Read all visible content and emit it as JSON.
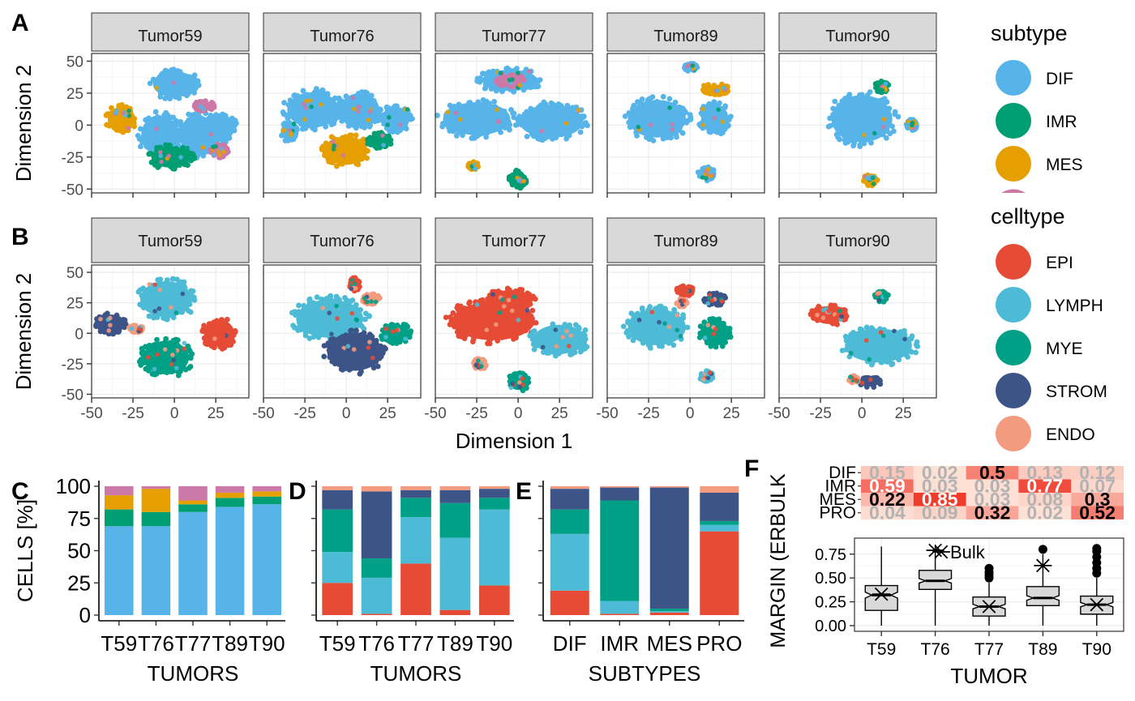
{
  "colors": {
    "subtype": {
      "DIF": "#56B4E9",
      "IMR": "#009E73",
      "MES": "#E69F00",
      "PRO": "#CC79A7"
    },
    "celltype": {
      "EPI": "#E64B35",
      "LYMPH": "#4DBBD5",
      "MYE": "#00A087",
      "STROM": "#3C5488",
      "ENDO": "#F39B7F"
    },
    "strip_fill": "#D9D9D9"
  },
  "panel_letters": [
    "A",
    "B",
    "C",
    "D",
    "E",
    "F"
  ],
  "facets": [
    "Tumor59",
    "Tumor76",
    "Tumor77",
    "Tumor89",
    "Tumor90"
  ],
  "legends": {
    "subtype": {
      "title": "subtype",
      "items": [
        "DIF",
        "IMR",
        "MES"
      ]
    },
    "celltype": {
      "title": "celltype",
      "items": [
        "EPI",
        "LYMPH",
        "MYE",
        "STROM",
        "ENDO"
      ]
    }
  },
  "chart_data": [
    {
      "id": "A",
      "type": "scatter",
      "color_by": "subtype",
      "facets": [
        "Tumor59",
        "Tumor76",
        "Tumor77",
        "Tumor89",
        "Tumor90"
      ],
      "ylabel": "Dimension 2",
      "xlim": [
        -50,
        45
      ],
      "ylim": [
        -53,
        56
      ],
      "yticks": [
        -50,
        -25,
        0,
        25,
        50
      ],
      "clusters": [
        [
          {
            "x": 0,
            "y": 32,
            "rx": 14,
            "ry": 11,
            "type": "DIF"
          },
          {
            "x": -9,
            "y": -8,
            "rx": 12,
            "ry": 17,
            "type": "DIF"
          },
          {
            "x": 14,
            "y": -8,
            "rx": 12,
            "ry": 17,
            "type": "DIF"
          },
          {
            "x": 27,
            "y": -2,
            "rx": 10,
            "ry": 12,
            "type": "DIF"
          },
          {
            "x": -32,
            "y": 5,
            "rx": 9,
            "ry": 10,
            "type": "MES"
          },
          {
            "x": -2,
            "y": -25,
            "rx": 13,
            "ry": 9,
            "type": "IMR"
          },
          {
            "x": 18,
            "y": 15,
            "rx": 6,
            "ry": 4,
            "type": "PRO"
          },
          {
            "x": 27,
            "y": -20,
            "rx": 5,
            "ry": 5,
            "type": "PRO"
          }
        ],
        [
          {
            "x": -20,
            "y": 12,
            "rx": 17,
            "ry": 15,
            "type": "DIF"
          },
          {
            "x": 8,
            "y": 12,
            "rx": 13,
            "ry": 14,
            "type": "DIF"
          },
          {
            "x": 30,
            "y": 5,
            "rx": 9,
            "ry": 10,
            "type": "DIF"
          },
          {
            "x": -35,
            "y": -5,
            "rx": 5,
            "ry": 7,
            "type": "DIF"
          },
          {
            "x": 0,
            "y": -20,
            "rx": 14,
            "ry": 12,
            "type": "MES"
          },
          {
            "x": 20,
            "y": -12,
            "rx": 7,
            "ry": 6,
            "type": "IMR"
          }
        ],
        [
          {
            "x": -25,
            "y": 5,
            "rx": 22,
            "ry": 14,
            "type": "DIF"
          },
          {
            "x": 20,
            "y": 3,
            "rx": 21,
            "ry": 14,
            "type": "DIF"
          },
          {
            "x": -5,
            "y": 35,
            "rx": 18,
            "ry": 9,
            "type": "DIF"
          },
          {
            "x": 0,
            "y": -42,
            "rx": 5,
            "ry": 7,
            "type": "IMR"
          },
          {
            "x": -5,
            "y": 35,
            "rx": 8,
            "ry": 5,
            "type": "PRO"
          },
          {
            "x": -27,
            "y": -32,
            "rx": 3,
            "ry": 3,
            "type": "MES"
          }
        ],
        [
          {
            "x": -20,
            "y": 5,
            "rx": 19,
            "ry": 16,
            "type": "DIF"
          },
          {
            "x": 15,
            "y": 5,
            "rx": 9,
            "ry": 12,
            "type": "DIF"
          },
          {
            "x": 10,
            "y": -38,
            "rx": 5,
            "ry": 5,
            "type": "DIF"
          },
          {
            "x": 15,
            "y": 28,
            "rx": 8,
            "ry": 4,
            "type": "MES"
          },
          {
            "x": 0,
            "y": 45,
            "rx": 4,
            "ry": 3,
            "type": "DIF"
          }
        ],
        [
          {
            "x": 0,
            "y": 5,
            "rx": 20,
            "ry": 20,
            "type": "DIF"
          },
          {
            "x": 12,
            "y": 30,
            "rx": 4,
            "ry": 4,
            "type": "IMR"
          },
          {
            "x": 30,
            "y": 0,
            "rx": 3,
            "ry": 4,
            "type": "DIF"
          },
          {
            "x": 5,
            "y": -43,
            "rx": 4,
            "ry": 4,
            "type": "MES"
          }
        ]
      ]
    },
    {
      "id": "B",
      "type": "scatter",
      "color_by": "celltype",
      "facets": [
        "Tumor59",
        "Tumor76",
        "Tumor77",
        "Tumor89",
        "Tumor90"
      ],
      "xlabel": "Dimension 1",
      "ylabel": "Dimension 2",
      "xlim": [
        -50,
        45
      ],
      "ylim": [
        -53,
        56
      ],
      "xticks": [
        -50,
        -25,
        0,
        25
      ],
      "yticks": [
        -50,
        -25,
        0,
        25,
        50
      ],
      "clusters": [
        [
          {
            "x": -5,
            "y": 28,
            "rx": 17,
            "ry": 16,
            "type": "LYMPH"
          },
          {
            "x": -5,
            "y": -20,
            "rx": 15,
            "ry": 15,
            "type": "MYE"
          },
          {
            "x": -38,
            "y": 8,
            "rx": 9,
            "ry": 8,
            "type": "STROM"
          },
          {
            "x": 27,
            "y": 0,
            "rx": 10,
            "ry": 12,
            "type": "EPI"
          },
          {
            "x": -23,
            "y": 4,
            "rx": 4,
            "ry": 3,
            "type": "ENDO"
          }
        ],
        [
          {
            "x": -10,
            "y": 12,
            "rx": 22,
            "ry": 17,
            "type": "LYMPH"
          },
          {
            "x": 5,
            "y": -15,
            "rx": 18,
            "ry": 17,
            "type": "STROM"
          },
          {
            "x": 30,
            "y": 0,
            "rx": 9,
            "ry": 8,
            "type": "MYE"
          },
          {
            "x": 15,
            "y": 28,
            "rx": 5,
            "ry": 4,
            "type": "ENDO"
          },
          {
            "x": 5,
            "y": 40,
            "rx": 3,
            "ry": 5,
            "type": "EPI"
          }
        ],
        [
          {
            "x": -15,
            "y": 10,
            "rx": 27,
            "ry": 17,
            "type": "EPI"
          },
          {
            "x": -5,
            "y": 28,
            "rx": 14,
            "ry": 8,
            "type": "EPI"
          },
          {
            "x": 25,
            "y": -5,
            "rx": 17,
            "ry": 13,
            "type": "LYMPH"
          },
          {
            "x": 0,
            "y": -40,
            "rx": 6,
            "ry": 7,
            "type": "MYE"
          },
          {
            "x": -23,
            "y": -25,
            "rx": 4,
            "ry": 4,
            "type": "ENDO"
          }
        ],
        [
          {
            "x": -20,
            "y": 5,
            "rx": 19,
            "ry": 16,
            "type": "LYMPH"
          },
          {
            "x": 15,
            "y": 0,
            "rx": 9,
            "ry": 11,
            "type": "MYE"
          },
          {
            "x": 15,
            "y": 28,
            "rx": 6,
            "ry": 5,
            "type": "STROM"
          },
          {
            "x": -3,
            "y": 35,
            "rx": 5,
            "ry": 4,
            "type": "EPI"
          },
          {
            "x": -5,
            "y": 25,
            "rx": 3,
            "ry": 3,
            "type": "ENDO"
          },
          {
            "x": 10,
            "y": -35,
            "rx": 4,
            "ry": 4,
            "type": "LYMPH"
          }
        ],
        [
          {
            "x": 10,
            "y": -10,
            "rx": 22,
            "ry": 15,
            "type": "LYMPH"
          },
          {
            "x": -20,
            "y": 15,
            "rx": 10,
            "ry": 8,
            "type": "EPI"
          },
          {
            "x": 12,
            "y": 30,
            "rx": 4,
            "ry": 4,
            "type": "MYE"
          },
          {
            "x": 5,
            "y": -40,
            "rx": 6,
            "ry": 4,
            "type": "STROM"
          },
          {
            "x": -5,
            "y": -38,
            "rx": 3,
            "ry": 3,
            "type": "ENDO"
          }
        ]
      ]
    },
    {
      "id": "C",
      "type": "bar",
      "stacked": true,
      "categories": [
        "T59",
        "T76",
        "T77",
        "T89",
        "T90"
      ],
      "xlabel": "TUMORS",
      "ylabel": "CELLS [%]",
      "ylim": [
        0,
        100
      ],
      "yticks": [
        0,
        25,
        50,
        75,
        100
      ],
      "series": [
        {
          "name": "DIF",
          "values": [
            69,
            69,
            80,
            84,
            86
          ]
        },
        {
          "name": "IMR",
          "values": [
            13,
            11,
            6,
            7,
            6
          ]
        },
        {
          "name": "MES",
          "values": [
            11,
            18,
            3,
            4,
            4
          ]
        },
        {
          "name": "PRO",
          "values": [
            7,
            2,
            11,
            5,
            4
          ]
        }
      ]
    },
    {
      "id": "D",
      "type": "bar",
      "stacked": true,
      "categories": [
        "T59",
        "T76",
        "T77",
        "T89",
        "T90"
      ],
      "xlabel": "TUMORS",
      "ylim": [
        0,
        100
      ],
      "series": [
        {
          "name": "EPI",
          "values": [
            25,
            1,
            40,
            4,
            23
          ]
        },
        {
          "name": "LYMPH",
          "values": [
            24,
            28,
            36,
            56,
            59
          ]
        },
        {
          "name": "MYE",
          "values": [
            33,
            15,
            15,
            27,
            9
          ]
        },
        {
          "name": "STROM",
          "values": [
            15,
            52,
            6,
            10,
            7
          ]
        },
        {
          "name": "ENDO",
          "values": [
            3,
            4,
            3,
            3,
            2
          ]
        }
      ]
    },
    {
      "id": "E",
      "type": "bar",
      "stacked": true,
      "categories": [
        "DIF",
        "IMR",
        "MES",
        "PRO"
      ],
      "xlabel": "SUBTYPES",
      "ylim": [
        0,
        100
      ],
      "series": [
        {
          "name": "EPI",
          "values": [
            19,
            1,
            2,
            65
          ]
        },
        {
          "name": "LYMPH",
          "values": [
            44,
            10,
            1,
            5
          ]
        },
        {
          "name": "MYE",
          "values": [
            19,
            78,
            2,
            3
          ]
        },
        {
          "name": "STROM",
          "values": [
            16,
            10,
            94,
            22
          ]
        },
        {
          "name": "ENDO",
          "values": [
            2,
            1,
            1,
            5
          ]
        }
      ]
    },
    {
      "id": "F-heatmap",
      "type": "heatmap",
      "ylabel": "MARGIN (ERBULK",
      "rows": [
        "DIF",
        "IMR",
        "MES",
        "PRO"
      ],
      "columns": [
        "T59",
        "T76",
        "T77",
        "T89",
        "T90"
      ],
      "values": [
        [
          0.15,
          0.02,
          0.5,
          0.13,
          0.12
        ],
        [
          0.59,
          0.03,
          0.03,
          0.77,
          0.07
        ],
        [
          0.22,
          0.85,
          0.03,
          0.08,
          0.3
        ],
        [
          0.04,
          0.09,
          0.32,
          0.02,
          0.52
        ]
      ],
      "labels": [
        [
          "0.15",
          "0.02",
          "0.5",
          "0.13",
          "0.12"
        ],
        [
          "0.59",
          "0.03",
          "0.03",
          "0.77",
          "0.07"
        ],
        [
          "0.22",
          "0.85",
          "0.03",
          "0.08",
          "0.3"
        ],
        [
          "0.04",
          "0.09",
          "0.32",
          "0.02",
          "0.52"
        ]
      ]
    },
    {
      "id": "F-box",
      "type": "boxplot",
      "categories": [
        "T59",
        "T76",
        "T77",
        "T89",
        "T90"
      ],
      "xlabel": "TUMOR",
      "annotation": "Bulk",
      "ylim": [
        0,
        0.85
      ],
      "yticks": [
        "0.00",
        "0.25",
        "0.50",
        "0.75"
      ],
      "boxes": [
        {
          "min": 0.0,
          "q1": 0.16,
          "median": 0.32,
          "q3": 0.42,
          "max": 0.83,
          "bulk": 0.33,
          "outliers": []
        },
        {
          "min": 0.0,
          "q1": 0.38,
          "median": 0.47,
          "q3": 0.58,
          "max": 0.85,
          "bulk": 0.79,
          "outliers": []
        },
        {
          "min": 0.0,
          "q1": 0.1,
          "median": 0.2,
          "q3": 0.3,
          "max": 0.45,
          "bulk": 0.2,
          "outliers": [
            0.5,
            0.53,
            0.56,
            0.6
          ]
        },
        {
          "min": 0.0,
          "q1": 0.21,
          "median": 0.29,
          "q3": 0.41,
          "max": 0.75,
          "bulk": 0.63,
          "outliers": [
            0.8
          ]
        },
        {
          "min": 0.0,
          "q1": 0.12,
          "median": 0.22,
          "q3": 0.31,
          "max": 0.5,
          "bulk": 0.22,
          "outliers": [
            0.55,
            0.6,
            0.66,
            0.72,
            0.78,
            0.81
          ]
        }
      ]
    }
  ]
}
